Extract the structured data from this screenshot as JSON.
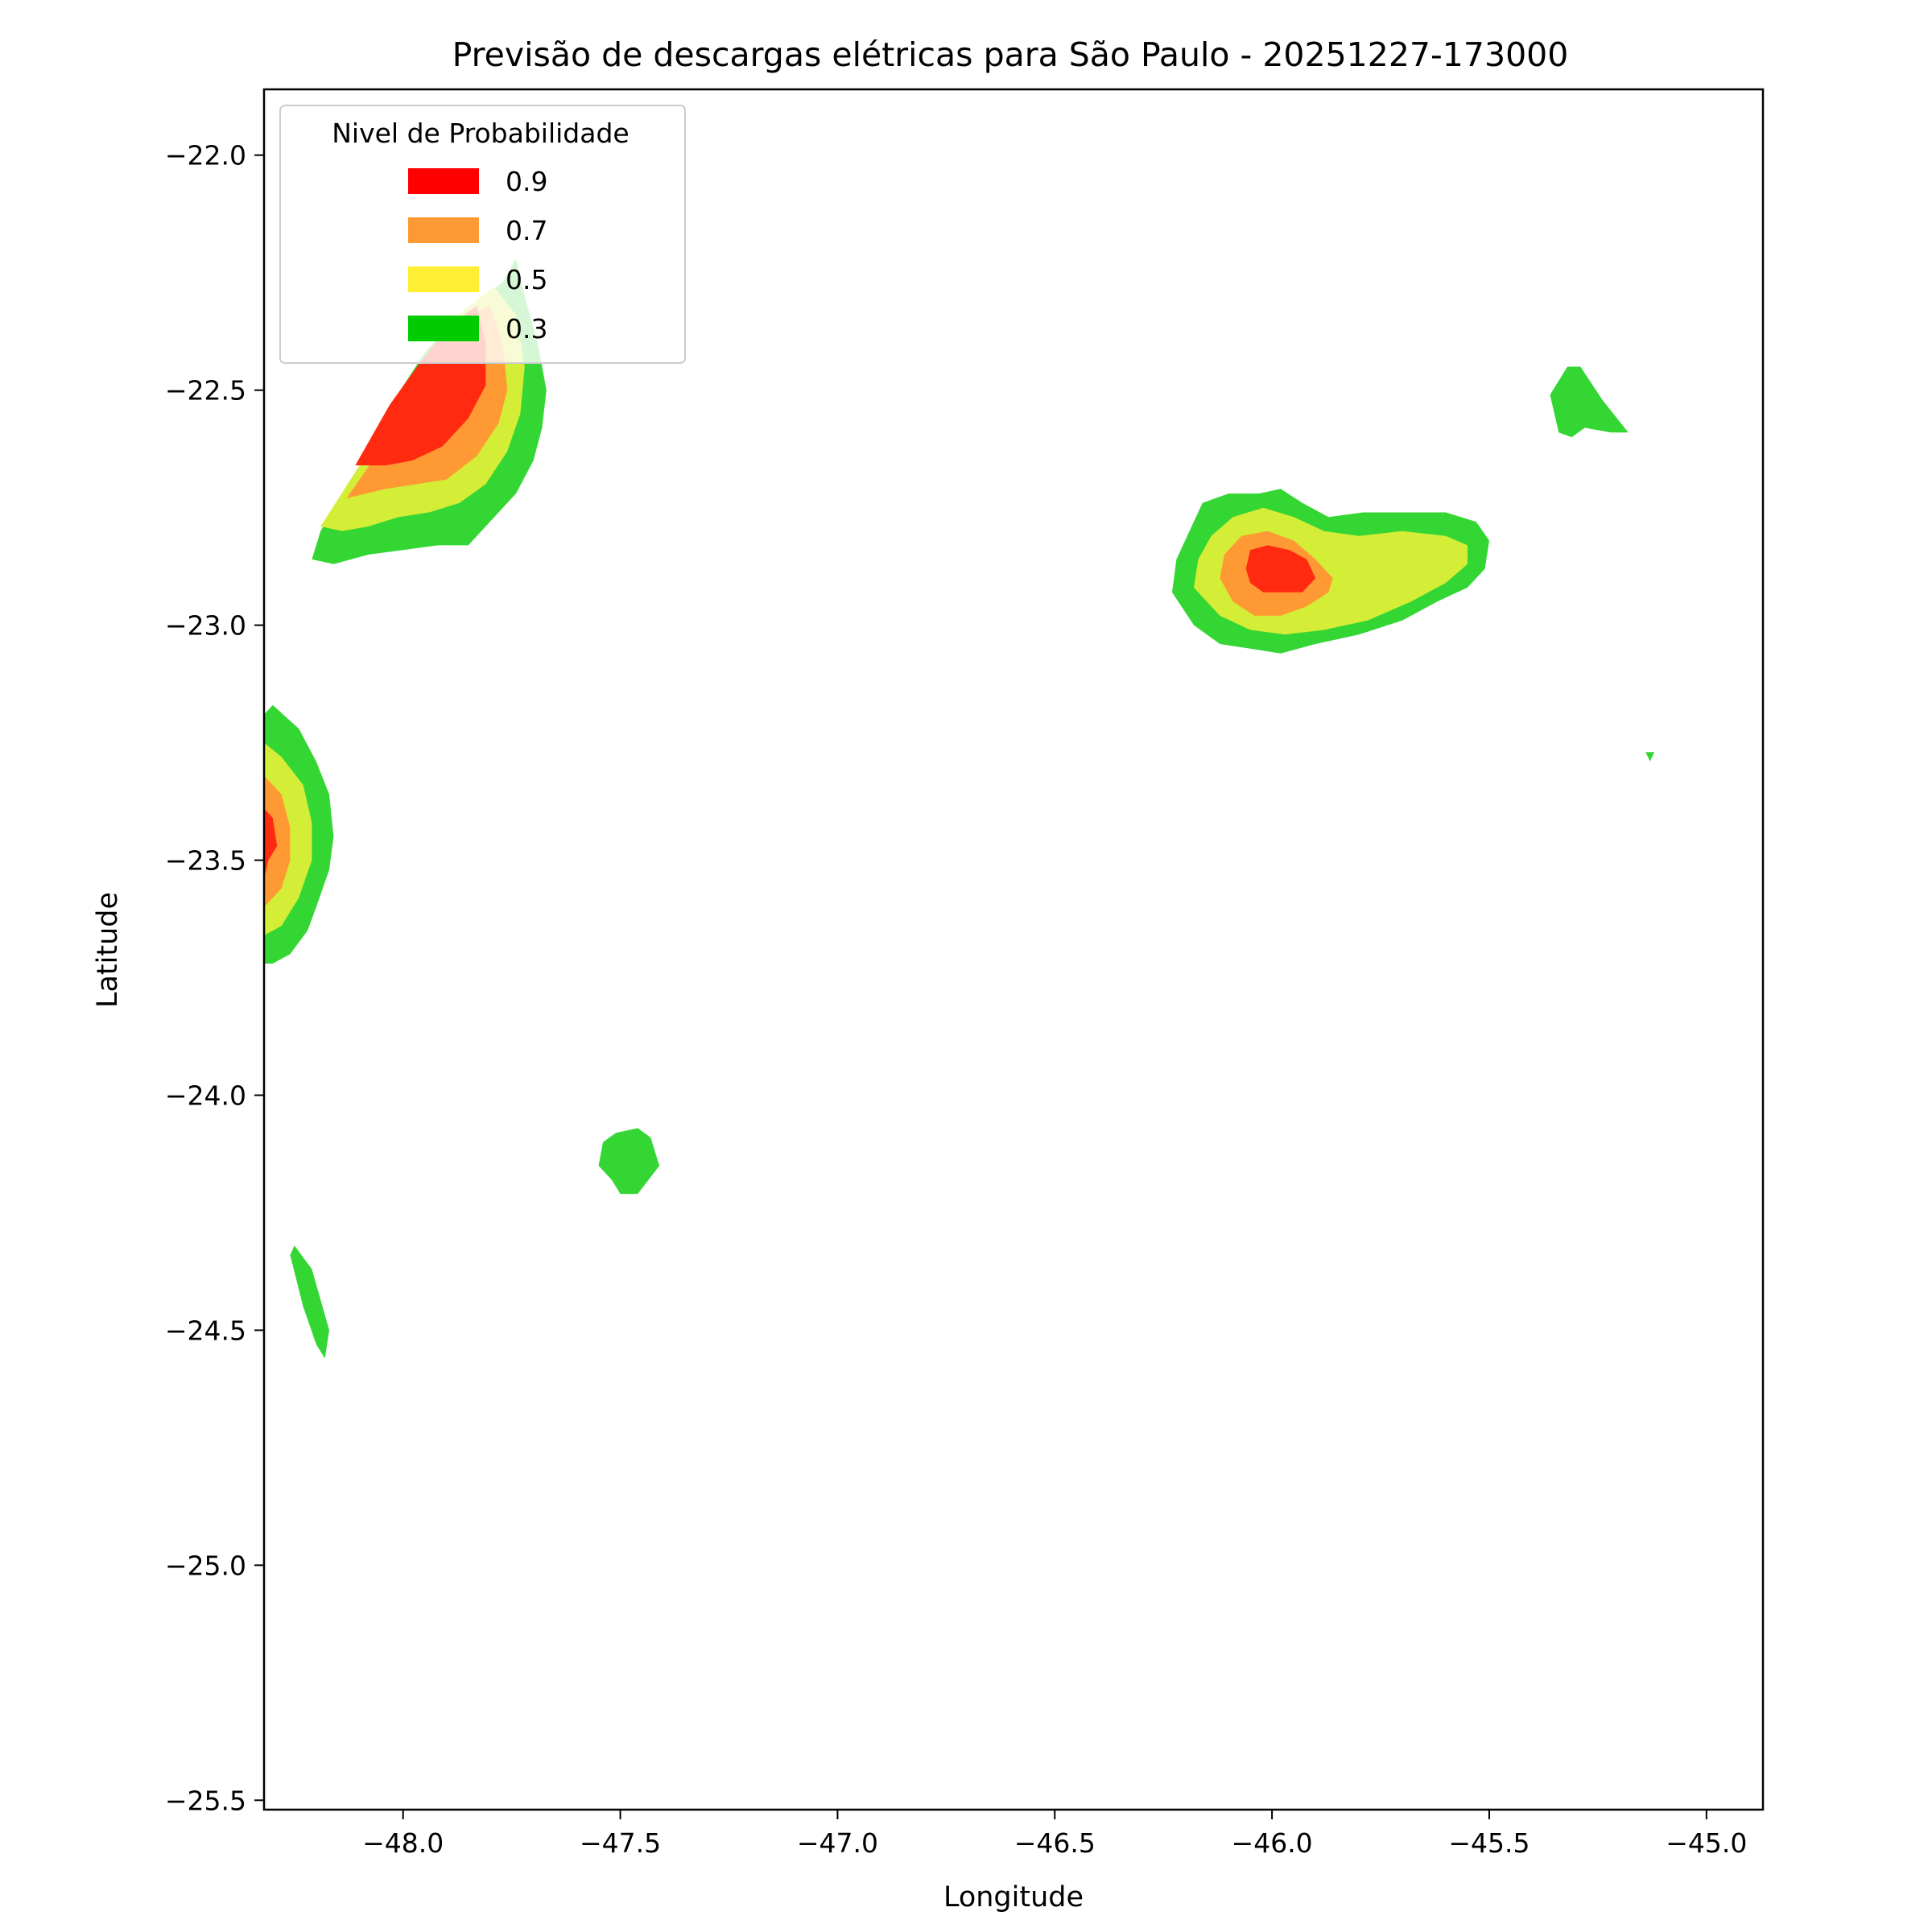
{
  "chart_data": {
    "type": "contourf",
    "title": "Previsão de descargas elétricas para São Paulo - 20251227-173000",
    "xlabel": "Longitude",
    "ylabel": "Latitude",
    "xlim": [
      -48.32,
      -44.87
    ],
    "ylim": [
      -25.52,
      -21.86
    ],
    "xticks": [
      -48.0,
      -47.5,
      -47.0,
      -46.5,
      -46.0,
      -45.5,
      -45.0
    ],
    "xtick_labels": [
      "−48.0",
      "−47.5",
      "−47.0",
      "−46.5",
      "−46.0",
      "−45.5",
      "−45.0"
    ],
    "yticks": [
      -22.0,
      -22.5,
      -23.0,
      -23.5,
      -24.0,
      -24.5,
      -25.0,
      -25.5
    ],
    "ytick_labels": [
      "−22.0",
      "−22.5",
      "−23.0",
      "−23.5",
      "−24.0",
      "−24.5",
      "−25.0",
      "−25.5"
    ],
    "legend": {
      "title": "Nivel de Probabilidade",
      "placement": "upper-left",
      "entries": [
        {
          "label": "0.9",
          "color": "#ff0000"
        },
        {
          "label": "0.7",
          "color": "#ff9933"
        },
        {
          "label": "0.5",
          "color": "#ffee33"
        },
        {
          "label": "0.3",
          "color": "#00cc00"
        }
      ]
    },
    "fill_colors": {
      "0.3": "#33d633",
      "0.5": "#d4ed36",
      "0.7": "#ff9933",
      "0.9": "#ff2a10"
    },
    "regions": [
      {
        "name": "northwest-cell",
        "levels": [
          {
            "level": "0.3",
            "polygon": [
              [
                -48.21,
                -22.86
              ],
              [
                -48.19,
                -22.8
              ],
              [
                -48.1,
                -22.66
              ],
              [
                -48.02,
                -22.52
              ],
              [
                -47.95,
                -22.42
              ],
              [
                -47.86,
                -22.33
              ],
              [
                -47.77,
                -22.27
              ],
              [
                -47.74,
                -22.22
              ],
              [
                -47.72,
                -22.3
              ],
              [
                -47.69,
                -22.4
              ],
              [
                -47.67,
                -22.5
              ],
              [
                -47.68,
                -22.58
              ],
              [
                -47.7,
                -22.65
              ],
              [
                -47.74,
                -22.72
              ],
              [
                -47.8,
                -22.78
              ],
              [
                -47.85,
                -22.83
              ],
              [
                -47.92,
                -22.83
              ],
              [
                -48.0,
                -22.84
              ],
              [
                -48.08,
                -22.85
              ],
              [
                -48.16,
                -22.87
              ]
            ]
          },
          {
            "level": "0.5",
            "polygon": [
              [
                -48.19,
                -22.79
              ],
              [
                -48.1,
                -22.66
              ],
              [
                -48.02,
                -22.52
              ],
              [
                -47.94,
                -22.42
              ],
              [
                -47.86,
                -22.33
              ],
              [
                -47.79,
                -22.28
              ],
              [
                -47.74,
                -22.34
              ],
              [
                -47.72,
                -22.45
              ],
              [
                -47.73,
                -22.55
              ],
              [
                -47.76,
                -22.63
              ],
              [
                -47.81,
                -22.7
              ],
              [
                -47.87,
                -22.74
              ],
              [
                -47.94,
                -22.76
              ],
              [
                -48.01,
                -22.77
              ],
              [
                -48.08,
                -22.79
              ],
              [
                -48.14,
                -22.8
              ]
            ]
          },
          {
            "level": "0.7",
            "polygon": [
              [
                -48.13,
                -22.73
              ],
              [
                -48.07,
                -22.65
              ],
              [
                -48.0,
                -22.52
              ],
              [
                -47.92,
                -22.42
              ],
              [
                -47.85,
                -22.34
              ],
              [
                -47.8,
                -22.32
              ],
              [
                -47.77,
                -22.4
              ],
              [
                -47.76,
                -22.5
              ],
              [
                -47.78,
                -22.57
              ],
              [
                -47.83,
                -22.64
              ],
              [
                -47.9,
                -22.69
              ],
              [
                -47.97,
                -22.7
              ],
              [
                -48.04,
                -22.71
              ]
            ]
          },
          {
            "level": "0.9",
            "polygon": [
              [
                -48.11,
                -22.66
              ],
              [
                -48.03,
                -22.53
              ],
              [
                -47.96,
                -22.44
              ],
              [
                -47.89,
                -22.36
              ],
              [
                -47.83,
                -22.32
              ],
              [
                -47.81,
                -22.4
              ],
              [
                -47.81,
                -22.49
              ],
              [
                -47.85,
                -22.56
              ],
              [
                -47.91,
                -22.62
              ],
              [
                -47.98,
                -22.65
              ],
              [
                -48.04,
                -22.66
              ]
            ]
          }
        ]
      },
      {
        "name": "west-edge-cell",
        "levels": [
          {
            "level": "0.3",
            "polygon": [
              [
                -48.32,
                -23.19
              ],
              [
                -48.3,
                -23.17
              ],
              [
                -48.24,
                -23.22
              ],
              [
                -48.2,
                -23.29
              ],
              [
                -48.17,
                -23.36
              ],
              [
                -48.16,
                -23.45
              ],
              [
                -48.17,
                -23.52
              ],
              [
                -48.2,
                -23.6
              ],
              [
                -48.22,
                -23.65
              ],
              [
                -48.26,
                -23.7
              ],
              [
                -48.3,
                -23.72
              ],
              [
                -48.32,
                -23.72
              ]
            ]
          },
          {
            "level": "0.5",
            "polygon": [
              [
                -48.32,
                -23.25
              ],
              [
                -48.28,
                -23.28
              ],
              [
                -48.23,
                -23.34
              ],
              [
                -48.21,
                -23.42
              ],
              [
                -48.21,
                -23.5
              ],
              [
                -48.24,
                -23.58
              ],
              [
                -48.28,
                -23.64
              ],
              [
                -48.32,
                -23.66
              ]
            ]
          },
          {
            "level": "0.7",
            "polygon": [
              [
                -48.32,
                -23.32
              ],
              [
                -48.28,
                -23.36
              ],
              [
                -48.26,
                -23.43
              ],
              [
                -48.26,
                -23.5
              ],
              [
                -48.28,
                -23.56
              ],
              [
                -48.32,
                -23.6
              ]
            ]
          },
          {
            "level": "0.9",
            "polygon": [
              [
                -48.32,
                -23.39
              ],
              [
                -48.3,
                -23.41
              ],
              [
                -48.29,
                -23.47
              ],
              [
                -48.31,
                -23.5
              ],
              [
                -48.32,
                -23.54
              ]
            ]
          }
        ]
      },
      {
        "name": "central-small-cell",
        "levels": [
          {
            "level": "0.3",
            "polygon": [
              [
                -47.54,
                -24.1
              ],
              [
                -47.51,
                -24.08
              ],
              [
                -47.46,
                -24.07
              ],
              [
                -47.43,
                -24.09
              ],
              [
                -47.41,
                -24.15
              ],
              [
                -47.46,
                -24.21
              ],
              [
                -47.5,
                -24.21
              ],
              [
                -47.52,
                -24.18
              ],
              [
                -47.55,
                -24.15
              ]
            ]
          }
        ]
      },
      {
        "name": "southwest-strip",
        "levels": [
          {
            "level": "0.3",
            "polygon": [
              [
                -48.25,
                -24.32
              ],
              [
                -48.21,
                -24.37
              ],
              [
                -48.17,
                -24.5
              ],
              [
                -48.18,
                -24.56
              ],
              [
                -48.2,
                -24.53
              ],
              [
                -48.23,
                -24.45
              ],
              [
                -48.26,
                -24.34
              ]
            ]
          }
        ]
      },
      {
        "name": "east-cell",
        "levels": [
          {
            "level": "0.3",
            "polygon": [
              [
                -46.23,
                -22.93
              ],
              [
                -46.22,
                -22.86
              ],
              [
                -46.19,
                -22.8
              ],
              [
                -46.16,
                -22.74
              ],
              [
                -46.1,
                -22.72
              ],
              [
                -46.03,
                -22.72
              ],
              [
                -45.98,
                -22.71
              ],
              [
                -45.93,
                -22.74
              ],
              [
                -45.87,
                -22.77
              ],
              [
                -45.79,
                -22.76
              ],
              [
                -45.67,
                -22.76
              ],
              [
                -45.6,
                -22.76
              ],
              [
                -45.53,
                -22.78
              ],
              [
                -45.5,
                -22.82
              ],
              [
                -45.51,
                -22.88
              ],
              [
                -45.55,
                -22.92
              ],
              [
                -45.62,
                -22.95
              ],
              [
                -45.7,
                -22.99
              ],
              [
                -45.8,
                -23.02
              ],
              [
                -45.9,
                -23.04
              ],
              [
                -45.98,
                -23.06
              ],
              [
                -46.05,
                -23.05
              ],
              [
                -46.12,
                -23.04
              ],
              [
                -46.18,
                -23.0
              ]
            ]
          },
          {
            "level": "0.5",
            "polygon": [
              [
                -46.18,
                -22.92
              ],
              [
                -46.17,
                -22.86
              ],
              [
                -46.14,
                -22.81
              ],
              [
                -46.09,
                -22.77
              ],
              [
                -46.02,
                -22.75
              ],
              [
                -45.95,
                -22.77
              ],
              [
                -45.88,
                -22.8
              ],
              [
                -45.8,
                -22.81
              ],
              [
                -45.7,
                -22.8
              ],
              [
                -45.6,
                -22.81
              ],
              [
                -45.55,
                -22.83
              ],
              [
                -45.55,
                -22.87
              ],
              [
                -45.6,
                -22.91
              ],
              [
                -45.68,
                -22.95
              ],
              [
                -45.78,
                -22.99
              ],
              [
                -45.88,
                -23.01
              ],
              [
                -45.97,
                -23.02
              ],
              [
                -46.05,
                -23.01
              ],
              [
                -46.12,
                -22.98
              ]
            ]
          },
          {
            "level": "0.7",
            "polygon": [
              [
                -46.12,
                -22.9
              ],
              [
                -46.11,
                -22.85
              ],
              [
                -46.07,
                -22.81
              ],
              [
                -46.01,
                -22.8
              ],
              [
                -45.95,
                -22.82
              ],
              [
                -45.9,
                -22.86
              ],
              [
                -45.86,
                -22.9
              ],
              [
                -45.87,
                -22.93
              ],
              [
                -45.92,
                -22.96
              ],
              [
                -45.98,
                -22.98
              ],
              [
                -46.04,
                -22.98
              ],
              [
                -46.09,
                -22.95
              ]
            ]
          },
          {
            "level": "0.9",
            "polygon": [
              [
                -46.06,
                -22.88
              ],
              [
                -46.05,
                -22.84
              ],
              [
                -46.01,
                -22.83
              ],
              [
                -45.96,
                -22.84
              ],
              [
                -45.92,
                -22.86
              ],
              [
                -45.9,
                -22.9
              ],
              [
                -45.93,
                -22.93
              ],
              [
                -45.98,
                -22.93
              ],
              [
                -46.02,
                -22.93
              ],
              [
                -46.05,
                -22.91
              ]
            ]
          }
        ]
      },
      {
        "name": "northeast-small-cell",
        "levels": [
          {
            "level": "0.3",
            "polygon": [
              [
                -45.36,
                -22.51
              ],
              [
                -45.32,
                -22.45
              ],
              [
                -45.29,
                -22.45
              ],
              [
                -45.24,
                -22.52
              ],
              [
                -45.18,
                -22.59
              ],
              [
                -45.22,
                -22.59
              ],
              [
                -45.28,
                -22.58
              ],
              [
                -45.31,
                -22.6
              ],
              [
                -45.34,
                -22.59
              ]
            ]
          }
        ]
      },
      {
        "name": "east-speck",
        "levels": [
          {
            "level": "0.3",
            "polygon": [
              [
                -45.14,
                -23.27
              ],
              [
                -45.12,
                -23.27
              ],
              [
                -45.13,
                -23.29
              ]
            ]
          }
        ]
      }
    ]
  }
}
